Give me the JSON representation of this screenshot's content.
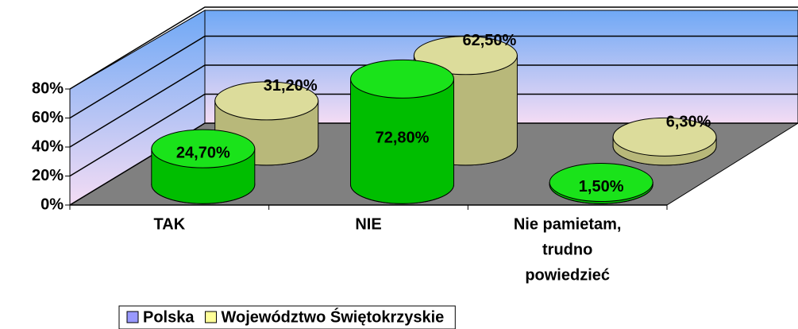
{
  "chart_data": {
    "type": "bar3d",
    "categories": [
      "TAK",
      "NIE",
      [
        "Nie pamietam,",
        "trudno",
        "powiedzieć"
      ]
    ],
    "series": [
      {
        "name": "Polska",
        "color": "#00e000",
        "legend_color": "#9999ff",
        "values": [
          24.7,
          72.8,
          1.5
        ],
        "value_labels": [
          "24,70%",
          "72,80%",
          "1,50%"
        ]
      },
      {
        "name": "Województwo Świętokrzyskie",
        "color": "#d8d890",
        "legend_color": "#ffff99",
        "values": [
          31.2,
          62.5,
          6.3
        ],
        "value_labels": [
          "31,20%",
          "62,50%",
          "6,30%"
        ]
      }
    ],
    "ylim": [
      0,
      80
    ],
    "yticks": [
      {
        "value": 0,
        "label": "0%"
      },
      {
        "value": 20,
        "label": "20%"
      },
      {
        "value": 40,
        "label": "40%"
      },
      {
        "value": 60,
        "label": "60%"
      },
      {
        "value": 80,
        "label": "80%"
      }
    ],
    "grid": true
  }
}
